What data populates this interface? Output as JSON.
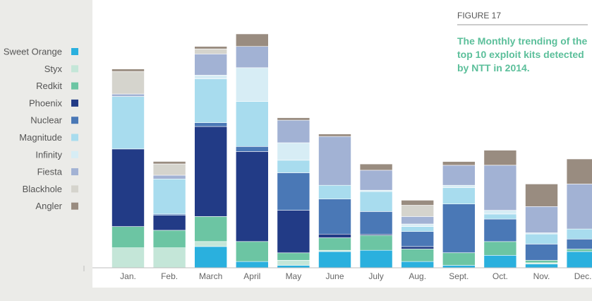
{
  "chart_data": {
    "type": "bar",
    "stacked": true,
    "figure_label": "FIGURE 17",
    "title_lines": [
      "The Monthly trending of the",
      "top 10 exploit kits detected",
      "by NTT in 2014."
    ],
    "categories": [
      "Jan.",
      "Feb.",
      "March",
      "April",
      "May",
      "June",
      "July",
      "Aug.",
      "Sept.",
      "Oct.",
      "Nov.",
      "Dec."
    ],
    "legend_position": "left",
    "legend_order": [
      "Sweet Orange",
      "Styx",
      "Redkit",
      "Phoenix",
      "Nuclear",
      "Magnitude",
      "Infinity",
      "Fiesta",
      "Blackhole",
      "Angler"
    ],
    "ylim": [
      0,
      100
    ],
    "series": [
      {
        "name": "Sweet Orange",
        "color": "#2ab0de",
        "values": [
          0,
          0,
          8.5,
          2.5,
          1,
          6.5,
          7,
          2.5,
          1,
          5,
          1.5,
          6.5
        ]
      },
      {
        "name": "Styx",
        "color": "#c4e6d8",
        "values": [
          8,
          8,
          2,
          0,
          2,
          0.5,
          0,
          0,
          0,
          0,
          0.5,
          0
        ]
      },
      {
        "name": "Redkit",
        "color": "#6cc5a3",
        "values": [
          8.5,
          7,
          10,
          8,
          3,
          5,
          6,
          5,
          5,
          5.5,
          1,
          1
        ]
      },
      {
        "name": "Phoenix",
        "color": "#223b86",
        "values": [
          31,
          6,
          36,
          36,
          17,
          1.5,
          0.5,
          1,
          0,
          0,
          0,
          0
        ]
      },
      {
        "name": "Nuclear",
        "color": "#4a78b6",
        "values": [
          0,
          0.5,
          1.5,
          2,
          15,
          14,
          9,
          6,
          19.5,
          9,
          6.5,
          4
        ]
      },
      {
        "name": "Magnitude",
        "color": "#a8dcee",
        "values": [
          21,
          14,
          17.5,
          18,
          5,
          5.5,
          8,
          2,
          6.5,
          2,
          4,
          4
        ]
      },
      {
        "name": "Infinity",
        "color": "#d7edf5",
        "values": [
          0,
          0,
          1.5,
          13.5,
          7,
          0,
          0.5,
          1,
          1,
          1.5,
          0.5,
          0
        ]
      },
      {
        "name": "Fiesta",
        "color": "#a2b2d4",
        "values": [
          1,
          1.5,
          8.5,
          8.5,
          9,
          19.5,
          8,
          3,
          8,
          18,
          10.5,
          18
        ]
      },
      {
        "name": "Blackhole",
        "color": "#d5d4cd",
        "values": [
          9,
          4.5,
          2,
          0,
          0,
          0,
          0,
          4.5,
          0,
          0,
          0,
          0
        ]
      },
      {
        "name": "Angler",
        "color": "#998c80",
        "values": [
          1,
          1,
          1,
          5,
          1,
          1,
          2.5,
          2,
          1.5,
          6,
          9,
          10
        ]
      }
    ]
  }
}
